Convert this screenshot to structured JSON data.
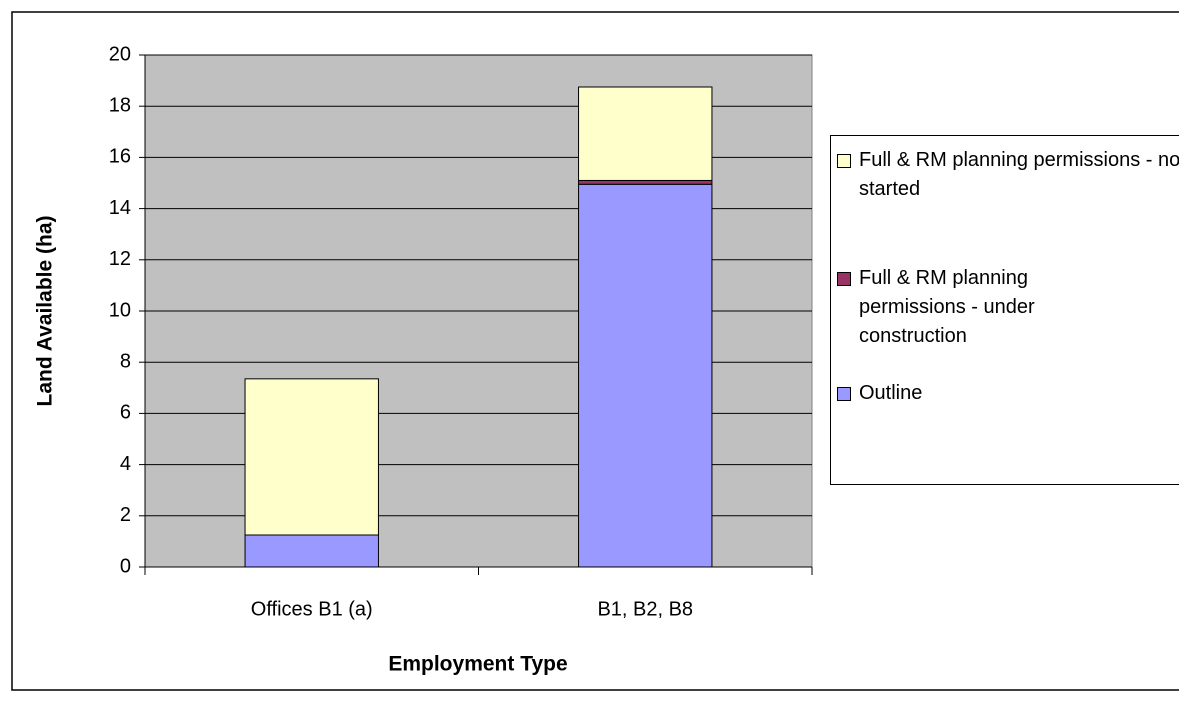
{
  "chart_data": {
    "type": "stacked_bar",
    "x_label": "Employment Type",
    "y_label": "Land Available (ha)",
    "categories": [
      "Offices B1 (a)",
      "B1, B2, B8"
    ],
    "series": [
      {
        "name": "Outline",
        "color": "#9999ff",
        "values": [
          1.25,
          14.95
        ]
      },
      {
        "name": "Full & RM planning permissions - under construction",
        "color": "#993366",
        "values": [
          0,
          0.15
        ]
      },
      {
        "name": "Full & RM planning permissions - not started",
        "color": "#ffffcc",
        "values": [
          6.1,
          3.65
        ]
      }
    ],
    "ylim": [
      0,
      20
    ],
    "yticks": [
      0,
      2,
      4,
      6,
      8,
      10,
      12,
      14,
      16,
      18,
      20
    ],
    "grid": true,
    "legend": "right",
    "plot_background": "#c0c0c0"
  }
}
